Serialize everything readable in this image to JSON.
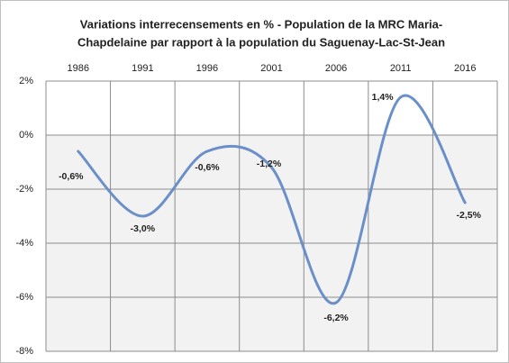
{
  "chart_data": {
    "type": "line",
    "title": [
      "Variations interrecensements en % - Population de la MRC Maria-",
      "Chapdelaine par rapport à la population du Saguenay-Lac-St-Jean"
    ],
    "categories": [
      "1986",
      "1991",
      "1996",
      "2001",
      "2006",
      "2011",
      "2016"
    ],
    "series": [
      {
        "color": "#6b8fc8",
        "values": [
          -0.6,
          -3.0,
          -0.6,
          -1.2,
          -6.2,
          1.4,
          -2.5
        ],
        "value_labels": [
          "-0,6%",
          "-3,0%",
          "-0,6%",
          "-1,2%",
          "-6,2%",
          "1,4%",
          "-2,5%"
        ]
      }
    ],
    "ylim": [
      -8,
      2
    ],
    "yticks": [
      {
        "value": 2,
        "label": "2%"
      },
      {
        "value": 0,
        "label": "0%"
      },
      {
        "value": -2,
        "label": "-2%"
      },
      {
        "value": -4,
        "label": "-4%"
      },
      {
        "value": -6,
        "label": "-6%"
      },
      {
        "value": -8,
        "label": "-8%"
      }
    ],
    "grid": true,
    "smooth": true
  }
}
